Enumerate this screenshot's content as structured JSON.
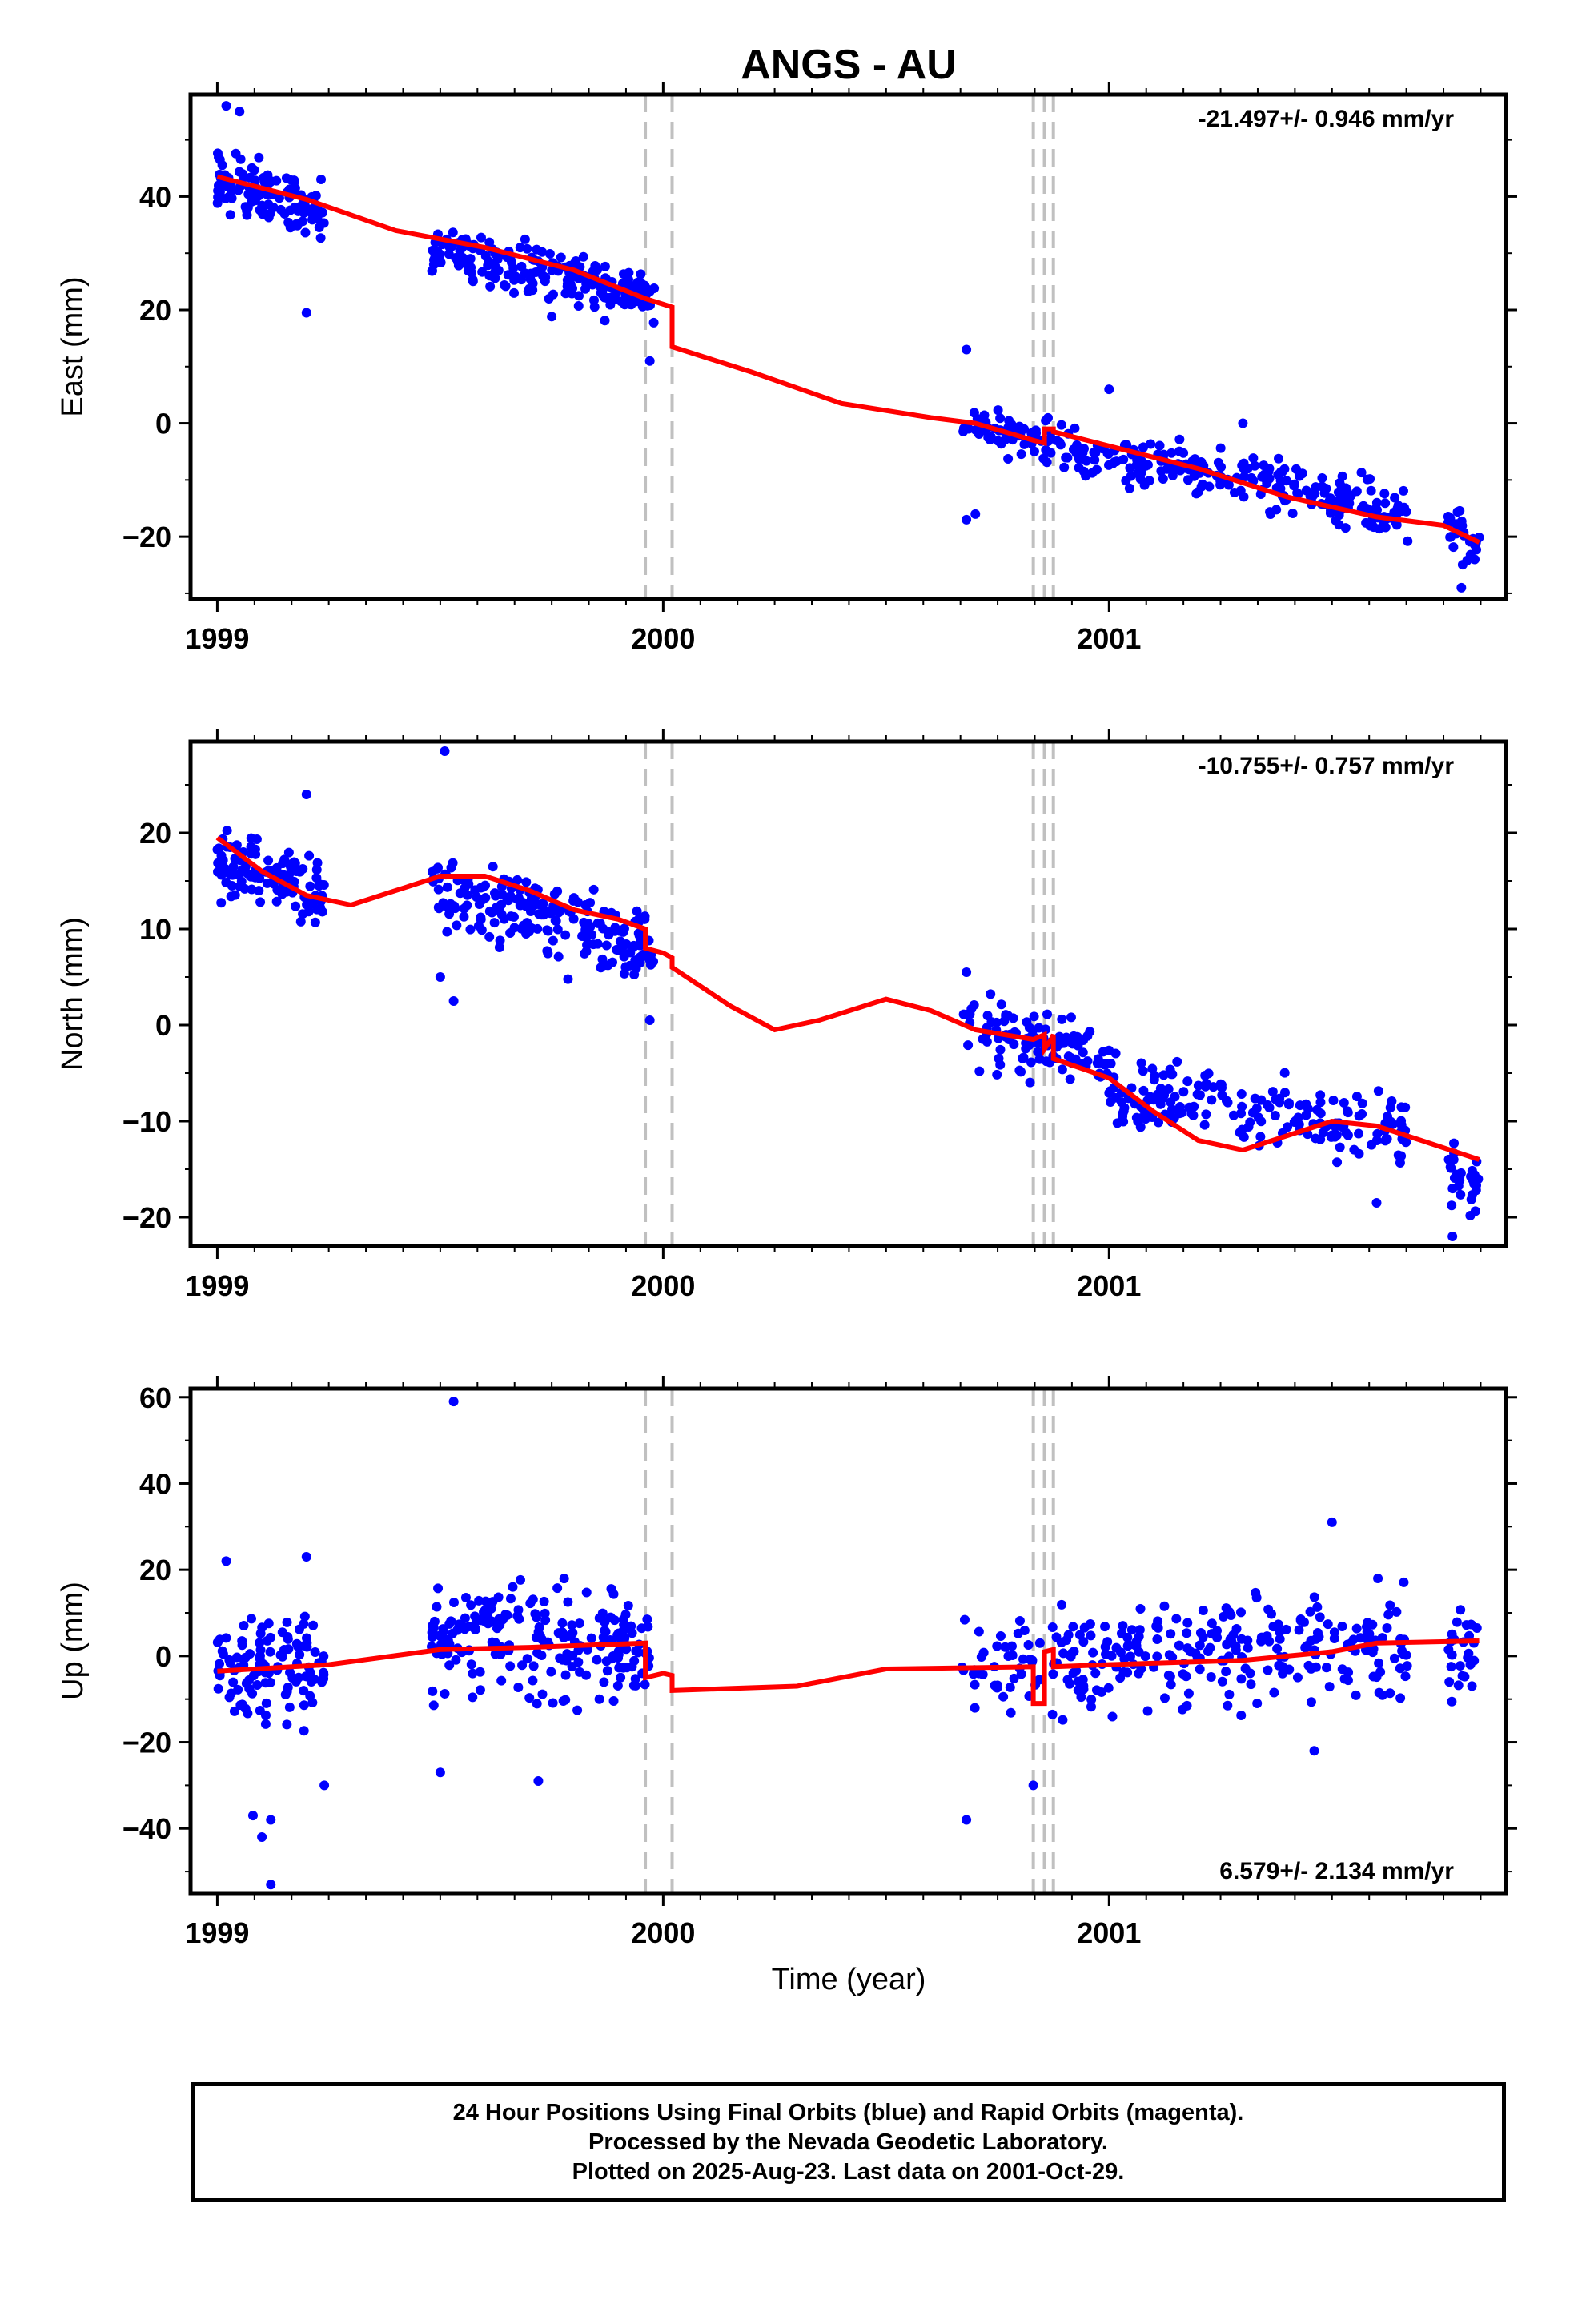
{
  "title": "ANGS - AU",
  "xlabel": "Time (year)",
  "x_ticks": [
    "1999",
    "2000",
    "2001"
  ],
  "footer": [
    "24 Hour Positions Using Final Orbits (blue) and Rapid Orbits (magenta).",
    "Processed by the Nevada Geodetic Laboratory.",
    "Plotted on 2025-Aug-23. Last data on 2001-Oct-29."
  ],
  "colors": {
    "points": "#0000ff",
    "model": "#ff0000",
    "steps": "#c0c0c0",
    "frame": "#000000"
  },
  "chart_data": [
    {
      "type": "scatter",
      "ylabel": "East (mm)",
      "rate": "-21.497+/- 0.946 mm/yr",
      "rate_position": "top-right",
      "xlim": [
        1998.94,
        2001.89
      ],
      "ylim": [
        -31,
        58
      ],
      "yticks": [
        -20,
        0,
        20,
        40
      ],
      "steps": [
        1999.96,
        2000.02,
        2000.83,
        2000.855,
        2000.875
      ],
      "model": [
        [
          1999.0,
          43.5
        ],
        [
          1999.2,
          39.5
        ],
        [
          1999.4,
          34
        ],
        [
          1999.6,
          31
        ],
        [
          1999.8,
          27
        ],
        [
          1999.96,
          22
        ],
        [
          2000.0,
          21
        ],
        [
          2000.02,
          20.5
        ],
        [
          2000.02,
          13.5
        ],
        [
          2000.2,
          9
        ],
        [
          2000.4,
          3.5
        ],
        [
          2000.6,
          1
        ],
        [
          2000.7,
          0
        ],
        [
          2000.83,
          -3
        ],
        [
          2000.855,
          -3.5
        ],
        [
          2000.855,
          -1
        ],
        [
          2000.875,
          -1
        ],
        [
          2000.875,
          -1.5
        ],
        [
          2001.0,
          -4
        ],
        [
          2001.2,
          -8
        ],
        [
          2001.4,
          -13
        ],
        [
          2001.6,
          -16.5
        ],
        [
          2001.75,
          -18
        ],
        [
          2001.83,
          -21
        ]
      ],
      "clusters": [
        {
          "x": [
            1999.0,
            1999.24
          ],
          "trend": [
            43,
            37
          ],
          "spread": 5,
          "n": 120
        },
        {
          "x": [
            1999.48,
            1999.98
          ],
          "trend": [
            31,
            22
          ],
          "spread": 4.5,
          "n": 220
        },
        {
          "x": [
            2000.67,
            2001.67
          ],
          "trend": [
            0,
            -16
          ],
          "spread": 4,
          "n": 300
        },
        {
          "x": [
            2001.76,
            2001.83
          ],
          "trend": [
            -19,
            -21
          ],
          "spread": 4,
          "n": 30
        }
      ],
      "outliers": [
        [
          1999.02,
          56
        ],
        [
          1999.05,
          55
        ],
        [
          1999.2,
          19.5
        ],
        [
          1999.97,
          11
        ],
        [
          2000.68,
          13
        ],
        [
          2000.68,
          -17
        ],
        [
          2000.7,
          -16
        ],
        [
          2001.0,
          6
        ],
        [
          2001.3,
          0
        ],
        [
          2001.79,
          -29
        ],
        [
          2001.82,
          -24
        ]
      ]
    },
    {
      "type": "scatter",
      "ylabel": "North (mm)",
      "rate": "-10.755+/- 0.757 mm/yr",
      "rate_position": "top-right",
      "xlim": [
        1998.94,
        2001.89
      ],
      "ylim": [
        -23,
        29.5
      ],
      "yticks": [
        -20,
        -10,
        0,
        10,
        20
      ],
      "steps": [
        1999.96,
        2000.02,
        2000.83,
        2000.855,
        2000.875
      ],
      "model": [
        [
          1999.0,
          19.5
        ],
        [
          1999.1,
          16
        ],
        [
          1999.2,
          13.5
        ],
        [
          1999.3,
          12.5
        ],
        [
          1999.4,
          14
        ],
        [
          1999.5,
          15.5
        ],
        [
          1999.6,
          15.5
        ],
        [
          1999.7,
          14
        ],
        [
          1999.8,
          12
        ],
        [
          1999.9,
          11
        ],
        [
          1999.96,
          10
        ],
        [
          1999.96,
          8
        ],
        [
          2000.0,
          7.5
        ],
        [
          2000.02,
          7
        ],
        [
          2000.02,
          6
        ],
        [
          2000.15,
          2
        ],
        [
          2000.25,
          -0.5
        ],
        [
          2000.35,
          0.5
        ],
        [
          2000.5,
          2.7
        ],
        [
          2000.6,
          1.5
        ],
        [
          2000.7,
          -0.5
        ],
        [
          2000.83,
          -1.5
        ],
        [
          2000.855,
          -1
        ],
        [
          2000.855,
          -2.5
        ],
        [
          2000.87,
          -1.5
        ],
        [
          2000.875,
          -1
        ],
        [
          2000.875,
          -3.5
        ],
        [
          2001.0,
          -5.5
        ],
        [
          2001.1,
          -9
        ],
        [
          2001.2,
          -12
        ],
        [
          2001.3,
          -13
        ],
        [
          2001.4,
          -11.5
        ],
        [
          2001.5,
          -10
        ],
        [
          2001.6,
          -10.5
        ],
        [
          2001.7,
          -12
        ],
        [
          2001.83,
          -14
        ]
      ],
      "clusters": [
        {
          "x": [
            1999.0,
            1999.24
          ],
          "trend": [
            17,
            14
          ],
          "spread": 3.5,
          "n": 120
        },
        {
          "x": [
            1999.48,
            1999.98
          ],
          "trend": [
            15,
            8
          ],
          "spread": 3.5,
          "n": 220
        },
        {
          "x": [
            2000.67,
            2001.0
          ],
          "trend": [
            0,
            -4
          ],
          "spread": 3,
          "n": 110
        },
        {
          "x": [
            2001.0,
            2001.67
          ],
          "trend": [
            -7,
            -11
          ],
          "spread": 3.5,
          "n": 190
        },
        {
          "x": [
            2001.76,
            2001.83
          ],
          "trend": [
            -15,
            -17
          ],
          "spread": 3,
          "n": 30
        }
      ],
      "outliers": [
        [
          1999.2,
          24
        ],
        [
          1999.51,
          28.5
        ],
        [
          1999.5,
          5
        ],
        [
          1999.53,
          2.5
        ],
        [
          1999.97,
          0.5
        ],
        [
          2000.68,
          5.5
        ],
        [
          2001.6,
          -18.5
        ],
        [
          2001.77,
          -22
        ]
      ]
    },
    {
      "type": "scatter",
      "ylabel": "Up (mm)",
      "rate": "6.579+/- 2.134 mm/yr",
      "rate_position": "bottom-right",
      "xlim": [
        1998.94,
        2001.89
      ],
      "ylim": [
        -55,
        62
      ],
      "yticks": [
        -40,
        -20,
        0,
        20,
        40,
        60
      ],
      "steps": [
        1999.96,
        2000.02,
        2000.83,
        2000.855,
        2000.875
      ],
      "model": [
        [
          1999.0,
          -3.5
        ],
        [
          1999.25,
          -2
        ],
        [
          1999.5,
          1.5
        ],
        [
          1999.7,
          2
        ],
        [
          1999.96,
          3
        ],
        [
          1999.96,
          -5
        ],
        [
          2000.0,
          -4
        ],
        [
          2000.02,
          -4.5
        ],
        [
          2000.02,
          -8
        ],
        [
          2000.3,
          -7
        ],
        [
          2000.5,
          -3
        ],
        [
          2000.83,
          -2.5
        ],
        [
          2000.83,
          -11
        ],
        [
          2000.855,
          -11
        ],
        [
          2000.855,
          1
        ],
        [
          2000.875,
          1.5
        ],
        [
          2000.875,
          -2.5
        ],
        [
          2001.0,
          -2
        ],
        [
          2001.3,
          -1
        ],
        [
          2001.5,
          1
        ],
        [
          2001.6,
          3
        ],
        [
          2001.83,
          3.5
        ]
      ],
      "clusters": [
        {
          "x": [
            1999.0,
            1999.24
          ],
          "trend": [
            -4,
            0
          ],
          "spread": 12,
          "n": 110
        },
        {
          "x": [
            1999.48,
            1999.98
          ],
          "trend": [
            5,
            2
          ],
          "spread": 12,
          "n": 210
        },
        {
          "x": [
            2000.67,
            2001.67
          ],
          "trend": [
            -2,
            3
          ],
          "spread": 11,
          "n": 290
        },
        {
          "x": [
            2001.76,
            2001.83
          ],
          "trend": [
            1,
            3
          ],
          "spread": 10,
          "n": 25
        }
      ],
      "outliers": [
        [
          1999.53,
          59
        ],
        [
          1999.02,
          22
        ],
        [
          1999.08,
          -37
        ],
        [
          1999.1,
          -42
        ],
        [
          1999.12,
          -38
        ],
        [
          1999.12,
          -53
        ],
        [
          1999.2,
          23
        ],
        [
          1999.24,
          -30
        ],
        [
          1999.5,
          -27
        ],
        [
          1999.72,
          -29
        ],
        [
          2000.68,
          -38
        ],
        [
          2000.83,
          -30
        ],
        [
          2001.5,
          31
        ],
        [
          2001.46,
          -22
        ]
      ]
    }
  ]
}
